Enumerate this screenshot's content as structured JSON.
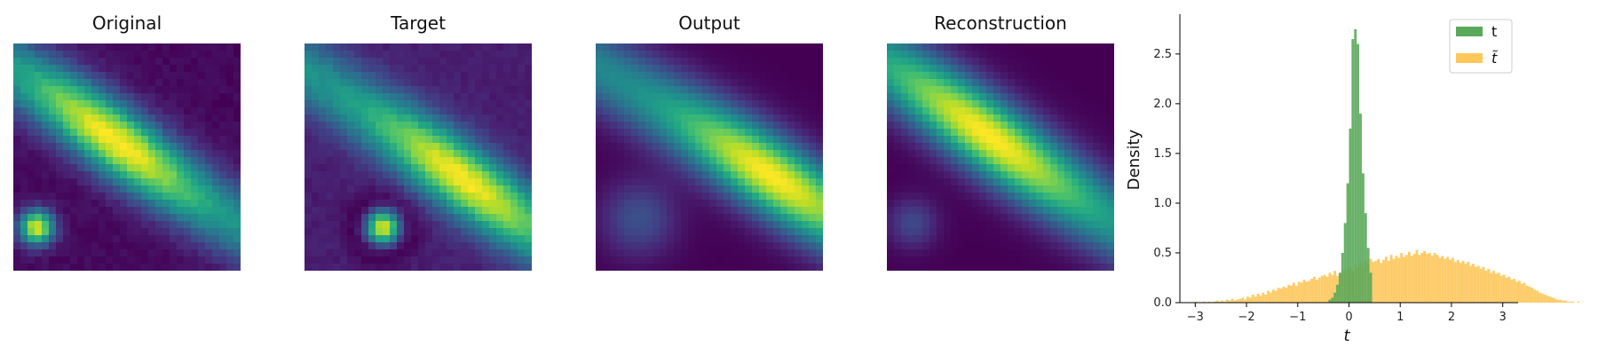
{
  "chart_data": [
    {
      "type": "heatmap",
      "title": "Original",
      "grid": [
        32,
        32
      ],
      "colormap": "viridis",
      "features": {
        "main_band": "diagonal bright band, peak left-center",
        "secondary_blob": "bottom-left bright spot"
      }
    },
    {
      "type": "heatmap",
      "title": "Target",
      "grid": [
        32,
        32
      ],
      "colormap": "viridis",
      "features": {
        "main_band": "diagonal bright band, peak right-center",
        "secondary_blob": "lower-left-center bright spot"
      }
    },
    {
      "type": "heatmap",
      "title": "Output",
      "grid": [
        32,
        32
      ],
      "colormap": "viridis",
      "features": {
        "main_band": "diagonal bright band, peak right",
        "secondary_blob": "faint bottom-left glow"
      }
    },
    {
      "type": "heatmap",
      "title": "Reconstruction",
      "grid": [
        32,
        32
      ],
      "colormap": "viridis",
      "features": {
        "main_band": "diagonal bright band, peak left-center",
        "secondary_blob": "faint bottom-left glow"
      }
    },
    {
      "type": "bar",
      "subtype": "histogram",
      "title": "",
      "xlabel": "t",
      "ylabel": "Density",
      "xlim": [
        -3.3,
        3.3
      ],
      "ylim": [
        0,
        2.9
      ],
      "xticks": [
        "−3",
        "−2",
        "−1",
        "0",
        "1",
        "2",
        "3"
      ],
      "xtick_values": [
        -3,
        -2,
        -1,
        0,
        1,
        2,
        3
      ],
      "yticks": [
        "0.0",
        "0.5",
        "1.0",
        "1.5",
        "2.0",
        "2.5"
      ],
      "ytick_values": [
        0,
        0.5,
        1.0,
        1.5,
        2.0,
        2.5
      ],
      "legend_position": "top-right",
      "series": [
        {
          "name": "t",
          "color": "#5aa85a",
          "bin_width": 0.05,
          "bin_start": -0.4,
          "values": [
            0.03,
            0.05,
            0.1,
            0.18,
            0.3,
            0.5,
            0.8,
            1.2,
            1.75,
            2.65,
            2.75,
            2.6,
            1.9,
            1.3,
            0.9,
            0.55,
            0.3
          ]
        },
        {
          "name": "t̃",
          "color": "#fdc75a",
          "bin_width": 0.05,
          "bin_start": -3.0,
          "values": [
            0.01,
            0.0,
            0.0,
            0.01,
            0.0,
            0.01,
            0.0,
            0.01,
            0.02,
            0.01,
            0.02,
            0.01,
            0.03,
            0.02,
            0.04,
            0.02,
            0.03,
            0.04,
            0.05,
            0.03,
            0.06,
            0.05,
            0.08,
            0.06,
            0.09,
            0.07,
            0.1,
            0.08,
            0.12,
            0.1,
            0.13,
            0.12,
            0.15,
            0.14,
            0.16,
            0.15,
            0.18,
            0.17,
            0.2,
            0.17,
            0.21,
            0.2,
            0.23,
            0.21,
            0.22,
            0.24,
            0.26,
            0.23,
            0.25,
            0.27,
            0.28,
            0.26,
            0.3,
            0.28,
            0.32,
            0.27,
            0.3,
            0.33,
            0.31,
            0.34,
            0.36,
            0.32,
            0.38,
            0.35,
            0.4,
            0.37,
            0.42,
            0.39,
            0.44,
            0.41,
            0.42,
            0.44,
            0.4,
            0.43,
            0.46,
            0.42,
            0.48,
            0.44,
            0.47,
            0.45,
            0.5,
            0.46,
            0.48,
            0.51,
            0.47,
            0.49,
            0.53,
            0.48,
            0.5,
            0.52,
            0.49,
            0.5,
            0.47,
            0.5,
            0.48,
            0.45,
            0.47,
            0.44,
            0.46,
            0.43,
            0.45,
            0.41,
            0.43,
            0.4,
            0.42,
            0.39,
            0.41,
            0.37,
            0.39,
            0.36,
            0.37,
            0.34,
            0.36,
            0.32,
            0.34,
            0.3,
            0.32,
            0.29,
            0.3,
            0.27,
            0.28,
            0.25,
            0.26,
            0.23,
            0.24,
            0.21,
            0.22,
            0.19,
            0.2,
            0.17,
            0.16,
            0.15,
            0.13,
            0.12,
            0.1,
            0.09,
            0.08,
            0.07,
            0.06,
            0.05,
            0.04,
            0.03,
            0.03,
            0.02,
            0.02,
            0.01,
            0.01,
            0.01,
            0.0,
            0.01
          ]
        }
      ]
    }
  ]
}
